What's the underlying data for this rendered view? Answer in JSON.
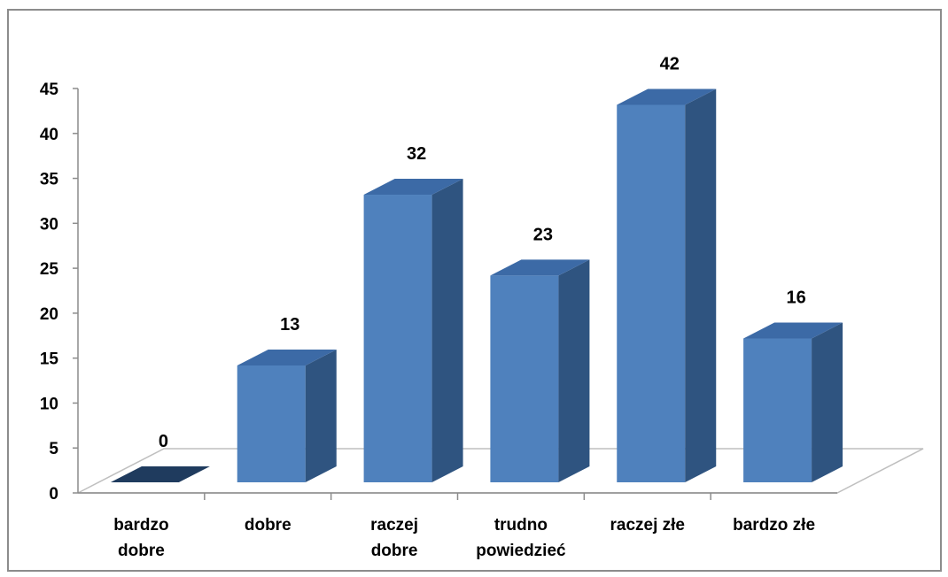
{
  "chart_data": {
    "type": "bar",
    "style": "3d-column",
    "categories": [
      [
        "bardzo",
        "dobre"
      ],
      [
        "dobre"
      ],
      [
        "raczej",
        "dobre"
      ],
      [
        "trudno",
        "powiedzieć"
      ],
      [
        "raczej złe"
      ],
      [
        "bardzo złe"
      ]
    ],
    "values": [
      0,
      13,
      32,
      23,
      42,
      16
    ],
    "data_labels": [
      "0",
      "13",
      "32",
      "23",
      "42",
      "16"
    ],
    "yticks": [
      "0",
      "5",
      "10",
      "15",
      "20",
      "25",
      "30",
      "35",
      "40",
      "45"
    ],
    "ylim": [
      0,
      45
    ],
    "title": "",
    "xlabel": "",
    "ylabel": "",
    "grid": false,
    "legend": "none",
    "colors": {
      "front": "#4f81bd",
      "side": "#2f5480",
      "top": "#3c6aa6",
      "zero_face": "#1f3b5e",
      "floor": "#ffffff",
      "floor_stroke": "#bfbfbf",
      "axis": "#8c8c8c"
    }
  }
}
